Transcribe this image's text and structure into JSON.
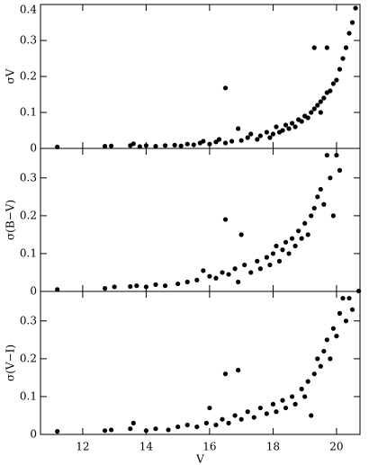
{
  "chart_data": [
    {
      "type": "scatter",
      "ylabel": "σV",
      "color": "#000000",
      "x": [
        11.2,
        12.7,
        12.9,
        13.5,
        13.6,
        13.8,
        14.0,
        14.3,
        14.6,
        14.9,
        15.1,
        15.3,
        15.5,
        15.7,
        15.8,
        16.0,
        16.2,
        16.3,
        16.5,
        16.5,
        16.7,
        16.9,
        17.0,
        17.2,
        17.3,
        17.5,
        17.6,
        17.8,
        17.9,
        18.0,
        18.1,
        18.2,
        18.3,
        18.4,
        18.5,
        18.6,
        18.7,
        18.8,
        18.9,
        19.0,
        19.1,
        19.2,
        19.3,
        19.3,
        19.4,
        19.5,
        19.5,
        19.6,
        19.7,
        19.7,
        19.8,
        19.9,
        20.0,
        20.1,
        20.2,
        20.3,
        20.4,
        20.5,
        20.6
      ],
      "y": [
        0.004,
        0.006,
        0.007,
        0.008,
        0.013,
        0.005,
        0.008,
        0.006,
        0.008,
        0.009,
        0.007,
        0.012,
        0.01,
        0.015,
        0.02,
        0.012,
        0.018,
        0.025,
        0.168,
        0.015,
        0.02,
        0.055,
        0.022,
        0.03,
        0.04,
        0.025,
        0.035,
        0.045,
        0.03,
        0.04,
        0.06,
        0.045,
        0.05,
        0.065,
        0.055,
        0.07,
        0.06,
        0.08,
        0.075,
        0.09,
        0.085,
        0.1,
        0.11,
        0.28,
        0.12,
        0.13,
        0.1,
        0.14,
        0.155,
        0.28,
        0.16,
        0.18,
        0.19,
        0.22,
        0.25,
        0.28,
        0.32,
        0.35,
        0.39
      ],
      "xlim": [
        10.67,
        20.74
      ],
      "ylim": [
        0,
        0.4
      ],
      "yticks": [
        0,
        0.1,
        0.2,
        0.3,
        0.4
      ]
    },
    {
      "type": "scatter",
      "ylabel": "σ(B−V)",
      "color": "#000000",
      "x": [
        11.2,
        12.7,
        13.0,
        13.5,
        13.7,
        14.0,
        14.3,
        14.6,
        15.0,
        15.3,
        15.6,
        15.8,
        16.0,
        16.2,
        16.4,
        16.5,
        16.6,
        16.8,
        16.9,
        17.0,
        17.1,
        17.3,
        17.5,
        17.6,
        17.8,
        17.9,
        18.0,
        18.1,
        18.2,
        18.3,
        18.4,
        18.5,
        18.6,
        18.7,
        18.8,
        18.9,
        19.0,
        19.1,
        19.2,
        19.3,
        19.4,
        19.5,
        19.6,
        19.7,
        19.8,
        19.9,
        20.0,
        20.1,
        20.7
      ],
      "y": [
        0.005,
        0.008,
        0.012,
        0.013,
        0.015,
        0.012,
        0.018,
        0.015,
        0.02,
        0.025,
        0.03,
        0.055,
        0.04,
        0.035,
        0.05,
        0.19,
        0.045,
        0.06,
        0.025,
        0.15,
        0.07,
        0.05,
        0.08,
        0.06,
        0.09,
        0.07,
        0.1,
        0.12,
        0.08,
        0.11,
        0.13,
        0.1,
        0.14,
        0.12,
        0.16,
        0.14,
        0.18,
        0.15,
        0.2,
        0.22,
        0.25,
        0.27,
        0.23,
        0.36,
        0.3,
        0.2,
        0.36,
        0.32,
        0.001
      ],
      "xlim": [
        10.67,
        20.74
      ],
      "ylim": [
        0,
        0.378
      ],
      "yticks": [
        0,
        0.1,
        0.2,
        0.3
      ]
    },
    {
      "type": "scatter",
      "ylabel": "σ(V−I)",
      "xlabel": "V",
      "color": "#000000",
      "x": [
        11.2,
        12.7,
        12.9,
        13.5,
        13.6,
        14.0,
        14.3,
        14.7,
        15.0,
        15.3,
        15.6,
        15.9,
        16.0,
        16.2,
        16.4,
        16.5,
        16.6,
        16.8,
        16.9,
        17.0,
        17.2,
        17.4,
        17.6,
        17.8,
        18.0,
        18.1,
        18.3,
        18.4,
        18.6,
        18.7,
        18.9,
        19.0,
        19.1,
        19.2,
        19.3,
        19.4,
        19.5,
        19.6,
        19.7,
        19.8,
        19.9,
        20.0,
        20.1,
        20.2,
        20.3,
        20.4,
        20.5
      ],
      "y": [
        0.008,
        0.01,
        0.012,
        0.015,
        0.03,
        0.01,
        0.015,
        0.012,
        0.02,
        0.025,
        0.02,
        0.03,
        0.07,
        0.025,
        0.04,
        0.16,
        0.03,
        0.05,
        0.17,
        0.04,
        0.06,
        0.045,
        0.07,
        0.055,
        0.08,
        0.06,
        0.09,
        0.07,
        0.1,
        0.08,
        0.12,
        0.1,
        0.14,
        0.05,
        0.16,
        0.2,
        0.18,
        0.22,
        0.25,
        0.2,
        0.28,
        0.26,
        0.32,
        0.36,
        0.3,
        0.36,
        0.33
      ],
      "xlim": [
        10.67,
        20.74
      ],
      "ylim": [
        0,
        0.378
      ],
      "yticks": [
        0,
        0.1,
        0.2,
        0.3
      ],
      "xticks": [
        12,
        14,
        16,
        18,
        20
      ]
    }
  ]
}
